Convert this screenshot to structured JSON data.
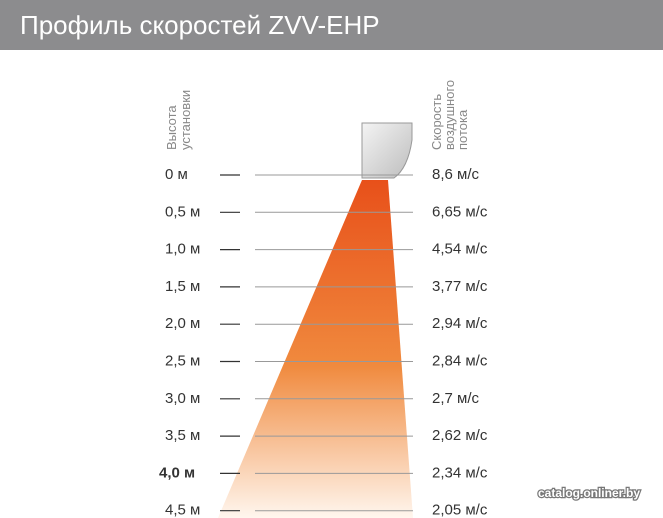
{
  "header": {
    "title": "Профиль скоростей ZVV-EHP"
  },
  "height_label": {
    "lines": [
      "Высота",
      "установки"
    ]
  },
  "speed_label": {
    "lines": [
      "Скорость",
      "воздушного",
      "потока"
    ]
  },
  "rows": [
    {
      "height": "0 м",
      "speed": "8,6 м/с"
    },
    {
      "height": "0,5 м",
      "speed": "6,65 м/с"
    },
    {
      "height": "1,0 м",
      "speed": "4,54 м/с"
    },
    {
      "height": "1,5 м",
      "speed": "3,77 м/с"
    },
    {
      "height": "2,0 м",
      "speed": "2,94 м/с"
    },
    {
      "height": "2,5 м",
      "speed": "2,84 м/с"
    },
    {
      "height": "3,0 м",
      "speed": "2,7 м/с"
    },
    {
      "height": "3,5 м",
      "speed": "2,62 м/с"
    },
    {
      "height": "4,0 м",
      "speed": "2,34 м/с"
    },
    {
      "height": "4,5 м",
      "speed": "2,05 м/с"
    }
  ],
  "watermark": "catalog.onliner.by"
}
